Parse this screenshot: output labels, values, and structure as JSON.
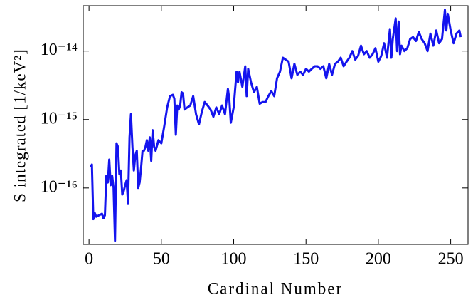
{
  "chart_data": {
    "type": "line",
    "xlabel": "Cardinal Number",
    "ylabel": "S integrated [1/keV²]",
    "log_y": true,
    "xlim": [
      -4,
      262
    ],
    "ylim": [
      1.5e-17,
      4.6e-14
    ],
    "xticks": [
      0,
      50,
      100,
      150,
      200,
      250
    ],
    "yticks": [
      {
        "value": 1e-16,
        "label": "10⁻¹⁶"
      },
      {
        "value": 1e-15,
        "label": "10⁻¹⁵"
      },
      {
        "value": 1e-14,
        "label": "10⁻¹⁴"
      }
    ],
    "series": [
      {
        "color": "#1414ee",
        "x": [
          1,
          2,
          3,
          4,
          5,
          7,
          9,
          10,
          11,
          12,
          13,
          14,
          15,
          16,
          17,
          18,
          19,
          20,
          21,
          22,
          23,
          24,
          25,
          26,
          27,
          28,
          29,
          30,
          31,
          32,
          33,
          34,
          35,
          36,
          37,
          38,
          39,
          40,
          41,
          42,
          43,
          44,
          45,
          46,
          48,
          50,
          52,
          54,
          56,
          58,
          59,
          60,
          61,
          62,
          63,
          64,
          65,
          66,
          68,
          70,
          72,
          74,
          76,
          78,
          80,
          82,
          84,
          86,
          88,
          90,
          92,
          94,
          96,
          97,
          98,
          100,
          102,
          103,
          104,
          106,
          108,
          109,
          110,
          112,
          114,
          116,
          118,
          120,
          122,
          124,
          126,
          128,
          130,
          132,
          134,
          136,
          138,
          140,
          142,
          144,
          146,
          148,
          150,
          152,
          154,
          156,
          158,
          160,
          162,
          164,
          166,
          168,
          170,
          172,
          174,
          176,
          178,
          180,
          182,
          184,
          186,
          188,
          190,
          192,
          194,
          196,
          198,
          200,
          202,
          204,
          206,
          208,
          209,
          210,
          212,
          213,
          214,
          215,
          216,
          218,
          220,
          222,
          224,
          226,
          228,
          230,
          232,
          234,
          236,
          238,
          240,
          242,
          244,
          246,
          247,
          248,
          250,
          252,
          254,
          256,
          257
        ],
        "values": [
          2e-16,
          2.2e-16,
          3.5e-17,
          4.3e-17,
          3.8e-17,
          4e-17,
          4.2e-17,
          3.6e-17,
          4e-17,
          1.5e-16,
          1.2e-16,
          2.6e-16,
          1.1e-16,
          1.5e-16,
          1e-16,
          1.7e-17,
          4.5e-16,
          4e-16,
          1.6e-16,
          1.8e-16,
          8e-17,
          9e-17,
          1.1e-16,
          1.3e-16,
          6e-17,
          5.5e-16,
          1.2e-15,
          4e-16,
          1.8e-16,
          3e-16,
          3.5e-16,
          1e-16,
          1.2e-16,
          2e-16,
          3.5e-16,
          3.5e-16,
          4e-16,
          5e-16,
          3.5e-16,
          5.5e-16,
          2.5e-16,
          7e-16,
          4e-16,
          3.5e-16,
          5e-16,
          4.5e-16,
          8e-16,
          1.5e-15,
          2.2e-15,
          2.3e-15,
          2e-15,
          6e-16,
          1.6e-15,
          1.4e-15,
          1.6e-15,
          2.5e-15,
          2.4e-15,
          1.4e-15,
          1.5e-15,
          1.6e-15,
          2.2e-15,
          1.2e-15,
          8.5e-16,
          1.3e-15,
          1.8e-15,
          1.6e-15,
          1.4e-15,
          1.1e-15,
          1.5e-15,
          1.2e-15,
          1.6e-15,
          1.2e-15,
          2.8e-15,
          2e-15,
          9e-16,
          1.5e-15,
          5e-15,
          3.5e-15,
          5e-15,
          3e-15,
          6e-15,
          2.2e-15,
          5.5e-15,
          3.5e-15,
          2.5e-15,
          3e-15,
          1.7e-15,
          1.8e-15,
          1.8e-15,
          2.2e-15,
          2.6e-15,
          2.2e-15,
          4e-15,
          5e-15,
          8e-15,
          7.5e-15,
          7e-15,
          4e-15,
          6.5e-15,
          4.5e-15,
          5e-15,
          4.5e-15,
          5.5e-15,
          5e-15,
          5.5e-15,
          6e-15,
          6e-15,
          5.5e-15,
          6e-15,
          4e-15,
          6.5e-15,
          4.5e-15,
          6.5e-15,
          7e-15,
          8e-15,
          6e-15,
          7e-15,
          8e-15,
          1e-14,
          7.5e-15,
          8.5e-15,
          1.2e-14,
          9e-15,
          1e-14,
          8e-15,
          9e-15,
          1.1e-14,
          7e-15,
          8.5e-15,
          1.3e-14,
          8e-15,
          2.1e-14,
          8e-15,
          1.5e-14,
          3e-14,
          1e-14,
          2.7e-14,
          9e-15,
          1.2e-14,
          1e-14,
          1.1e-14,
          1.5e-14,
          1.6e-14,
          1.4e-14,
          1.9e-14,
          1.5e-14,
          1.3e-14,
          1e-14,
          1.8e-14,
          1.2e-14,
          2e-14,
          1.3e-14,
          1.5e-14,
          4e-14,
          2e-14,
          3.5e-14,
          2e-14,
          1.3e-14,
          1.8e-14,
          2e-14,
          1.6e-14
        ]
      }
    ]
  }
}
